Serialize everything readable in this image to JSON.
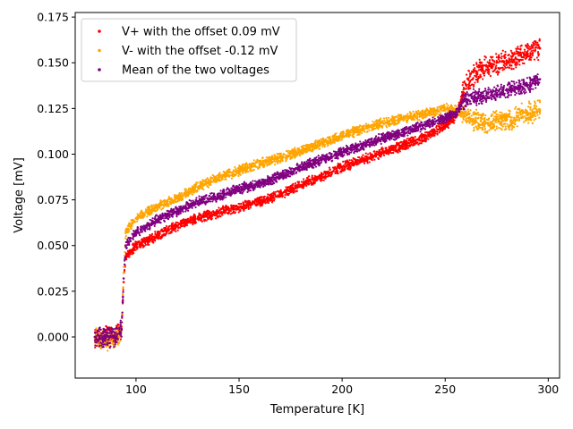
{
  "chart_data": {
    "type": "scatter",
    "title": "",
    "xlabel": "Temperature [K]",
    "ylabel": "Voltage [mV]",
    "xlim": [
      70.5,
      305.5
    ],
    "ylim": [
      -0.0225,
      0.1775
    ],
    "xticks": [
      100,
      150,
      200,
      250,
      300
    ],
    "yticks": [
      0.0,
      0.025,
      0.05,
      0.075,
      0.1,
      0.125,
      0.15,
      0.175
    ],
    "xtick_labels": [
      "100",
      "150",
      "200",
      "250",
      "300"
    ],
    "ytick_labels": [
      "0.000",
      "0.025",
      "0.050",
      "0.075",
      "0.100",
      "0.125",
      "0.150",
      "0.175"
    ],
    "grid": false,
    "legend_position": "top-left",
    "series": [
      {
        "name": "V+ with the offset 0.09 mV",
        "color": "#ff0000",
        "x": [
          80,
          85,
          90,
          93,
          94,
          95,
          100,
          110,
          120,
          130,
          140,
          150,
          160,
          170,
          180,
          190,
          200,
          210,
          220,
          230,
          240,
          250,
          255,
          260,
          265,
          270,
          280,
          290,
          296
        ],
        "y": [
          0.0,
          0.001,
          0.001,
          0.004,
          0.03,
          0.044,
          0.05,
          0.055,
          0.061,
          0.065,
          0.068,
          0.071,
          0.074,
          0.078,
          0.083,
          0.088,
          0.093,
          0.097,
          0.101,
          0.105,
          0.109,
          0.116,
          0.12,
          0.138,
          0.145,
          0.148,
          0.151,
          0.155,
          0.158
        ]
      },
      {
        "name": "V- with the offset -0.12 mV",
        "color": "#ffa500",
        "x": [
          80,
          85,
          90,
          93,
          94,
          95,
          100,
          110,
          120,
          130,
          140,
          150,
          160,
          170,
          180,
          190,
          200,
          210,
          220,
          230,
          240,
          250,
          255,
          260,
          265,
          270,
          280,
          290,
          296
        ],
        "y": [
          0.0,
          -0.002,
          -0.001,
          0.004,
          0.035,
          0.057,
          0.065,
          0.071,
          0.076,
          0.082,
          0.087,
          0.091,
          0.095,
          0.098,
          0.102,
          0.106,
          0.11,
          0.114,
          0.117,
          0.12,
          0.122,
          0.125,
          0.124,
          0.121,
          0.118,
          0.117,
          0.119,
          0.122,
          0.124
        ]
      },
      {
        "name": "Mean of the two voltages",
        "color": "#800080",
        "x": [
          80,
          85,
          90,
          93,
          94,
          95,
          100,
          110,
          120,
          130,
          140,
          150,
          160,
          170,
          180,
          190,
          200,
          210,
          220,
          230,
          240,
          250,
          255,
          260,
          265,
          270,
          280,
          290,
          296
        ],
        "y": [
          0.0,
          0.0,
          0.0,
          0.004,
          0.032,
          0.05,
          0.057,
          0.064,
          0.069,
          0.074,
          0.077,
          0.081,
          0.084,
          0.088,
          0.093,
          0.097,
          0.101,
          0.105,
          0.109,
          0.112,
          0.116,
          0.12,
          0.122,
          0.13,
          0.131,
          0.132,
          0.135,
          0.138,
          0.141
        ]
      }
    ]
  }
}
